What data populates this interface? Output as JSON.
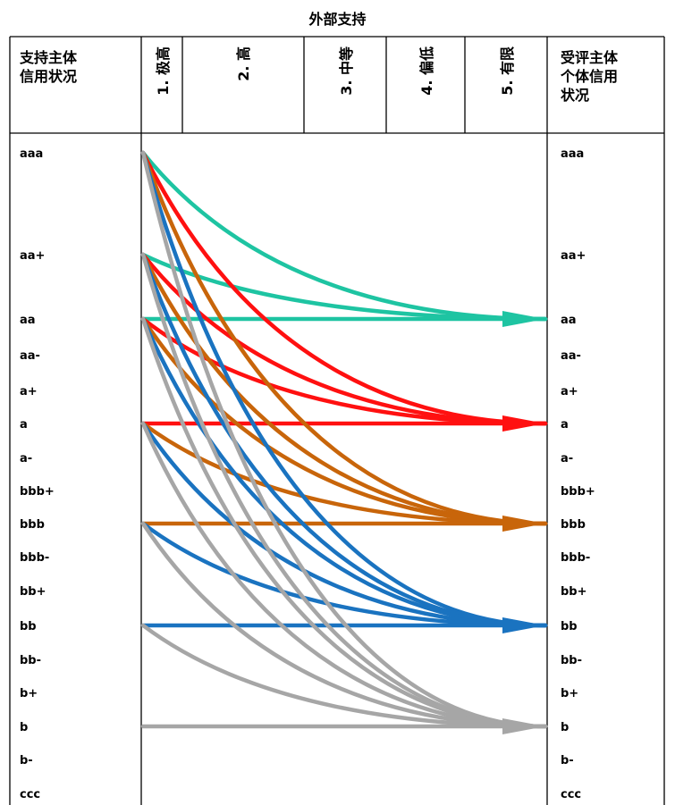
{
  "title": "外部支持",
  "left_header": [
    "支持主体",
    "信用状况"
  ],
  "right_header": [
    "受评主体",
    "个体信用",
    "状况"
  ],
  "support_levels": [
    "1. 极高",
    "2. 高",
    "3. 中等",
    "4. 偏低",
    "5. 有限"
  ],
  "ratings": [
    "aaa",
    "aa+",
    "aa",
    "aa-",
    "a+",
    "a",
    "a-",
    "bbb+",
    "bbb",
    "bbb-",
    "bb+",
    "bb",
    "bb-",
    "b+",
    "b",
    "b-",
    "ccc"
  ],
  "chart_data": {
    "type": "diagram",
    "targets": [
      {
        "target": "aa",
        "color": "#1ec4a2",
        "sources": [
          "aaa",
          "aa+",
          "aa"
        ]
      },
      {
        "target": "a",
        "color": "#ff1010",
        "sources": [
          "aaa",
          "aa+",
          "aa",
          "a"
        ]
      },
      {
        "target": "bbb",
        "color": "#c8650a",
        "sources": [
          "aaa",
          "aa+",
          "aa",
          "a",
          "bbb"
        ]
      },
      {
        "target": "bb",
        "color": "#1a73c0",
        "sources": [
          "aaa",
          "aa+",
          "aa",
          "a",
          "bbb",
          "bb"
        ]
      },
      {
        "target": "b",
        "color": "#a6a6a6",
        "sources": [
          "aaa",
          "aa+",
          "aa",
          "a",
          "bbb",
          "bb",
          "b"
        ]
      }
    ]
  }
}
